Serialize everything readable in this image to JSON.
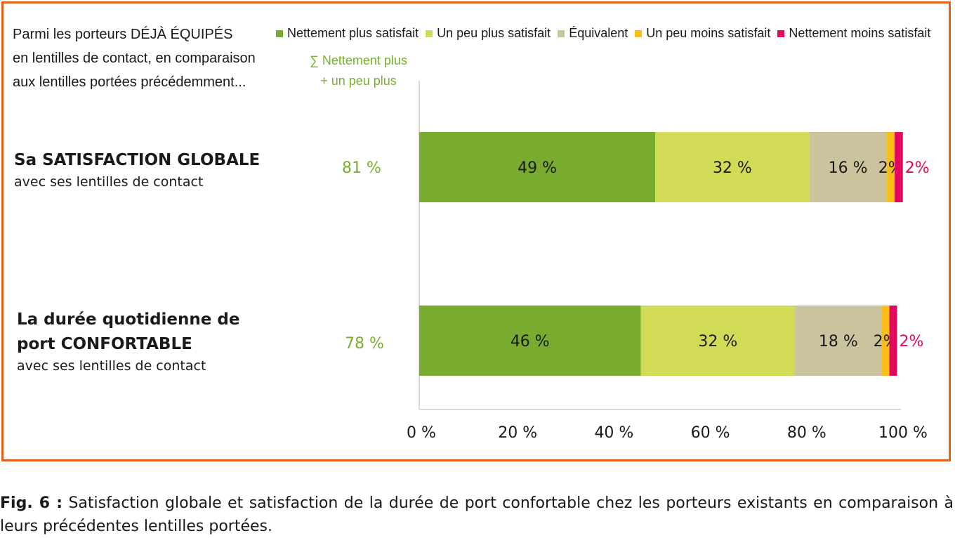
{
  "intro_lines": [
    "Parmi les porteurs DÉJÀ ÉQUIPÉS",
    "en lentilles de contact, en comparaison",
    "aux lentilles portées précédemment..."
  ],
  "sum_header": [
    "∑ Nettement plus",
    "+ un peu plus"
  ],
  "legend": [
    {
      "label": "Nettement plus satisfait",
      "color": "#78ab2e"
    },
    {
      "label": "Un peu plus satisfait",
      "color": "#d2db55"
    },
    {
      "label": "Équivalent",
      "color": "#cbc39d"
    },
    {
      "label": "Un peu moins satisfait",
      "color": "#f9bf17"
    },
    {
      "label": "Nettement moins satisfait",
      "color": "#e2085e"
    }
  ],
  "rows": [
    {
      "title_lines": [
        "Sa SATISFACTION GLOBALE"
      ],
      "subtitle": "avec ses lentilles de contact",
      "sum": "81 %"
    },
    {
      "title_lines": [
        "La durée quotidienne de",
        "port CONFORTABLE"
      ],
      "subtitle": "avec ses lentilles de contact",
      "sum": "78 %"
    }
  ],
  "caption": {
    "fig": "Fig. 6 :",
    "text": " Satisfaction globale et satisfaction de la durée de port confortable chez les porteurs existants en comparaison à leurs précédentes lentilles portées."
  },
  "frame_color": "#e2621b",
  "chart_data": {
    "type": "bar",
    "orientation": "horizontal-stacked",
    "categories": [
      "Sa SATISFACTION GLOBALE",
      "La durée quotidienne de port CONFORTABLE"
    ],
    "series": [
      {
        "name": "Nettement plus satisfait",
        "values": [
          49,
          46
        ],
        "labels": [
          "49 %",
          "46 %"
        ]
      },
      {
        "name": "Un peu plus satisfait",
        "values": [
          32,
          32
        ],
        "labels": [
          "32 %",
          "32 %"
        ]
      },
      {
        "name": "Équivalent",
        "values": [
          16,
          18
        ],
        "labels": [
          "16 %",
          "18 %"
        ]
      },
      {
        "name": "Un peu moins satisfait",
        "values": [
          1.7,
          1.6
        ],
        "labels": [
          "2%",
          "2%"
        ]
      },
      {
        "name": "Nettement moins satisfait",
        "values": [
          1.7,
          1.6
        ],
        "labels": [
          "2%",
          "2%"
        ]
      }
    ],
    "xlim": [
      0,
      100
    ],
    "xticks": [
      "0 %",
      "20 %",
      "40 %",
      "60 %",
      "80 %",
      "100 %"
    ],
    "grid": false,
    "legend_position": "top"
  }
}
